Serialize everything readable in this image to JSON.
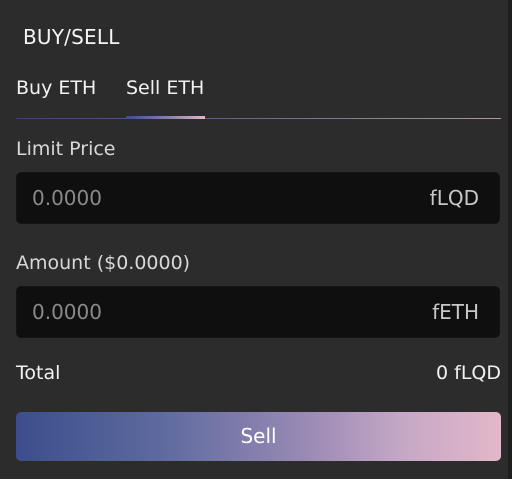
{
  "panel": {
    "title": "BUY/SELL"
  },
  "tabs": [
    {
      "label": "Buy ETH",
      "active": false
    },
    {
      "label": "Sell ETH",
      "active": true
    }
  ],
  "form": {
    "price_label": "Limit Price",
    "price_placeholder": "0.0000",
    "price_unit": "fLQD",
    "amount_label": "Amount ($0.0000)",
    "amount_placeholder": "0.0000",
    "amount_unit": "fETH",
    "total_label": "Total",
    "total_value": "0 fLQD",
    "submit_label": "Sell"
  },
  "colors": {
    "panel_bg": "#2c2c2c",
    "field_bg": "#0f0f0f",
    "gradient_start": "#3b4e8b",
    "gradient_end": "#e3b7c9"
  }
}
